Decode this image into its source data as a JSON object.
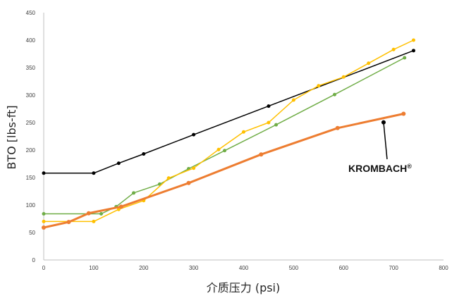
{
  "chart_data": {
    "type": "line",
    "title": "",
    "xlabel": "介质压力 (psi)",
    "ylabel": "BTO [lbs-ft]",
    "xlim": [
      0,
      800
    ],
    "ylim": [
      0,
      450
    ],
    "xticks": [
      0,
      100,
      200,
      300,
      400,
      500,
      600,
      700,
      800
    ],
    "yticks": [
      0,
      50,
      100,
      150,
      200,
      250,
      300,
      350,
      400,
      450
    ],
    "grid": false,
    "legend": "none",
    "annotation": {
      "text": "KROMBACH",
      "mark": "®",
      "series": "orange"
    },
    "series": [
      {
        "color": "#000000",
        "width": 1.5,
        "x": [
          0,
          100,
          150,
          200,
          300,
          450,
          740
        ],
        "y": [
          158,
          158,
          176,
          193,
          228,
          280,
          381
        ]
      },
      {
        "color": "#70ad47",
        "width": 1.5,
        "x": [
          0,
          115,
          145,
          180,
          232,
          290,
          362,
          465,
          582,
          722
        ],
        "y": [
          84,
          84,
          97,
          122,
          138,
          166,
          199,
          246,
          301,
          368
        ]
      },
      {
        "color": "#ffc000",
        "width": 1.5,
        "x": [
          0,
          100,
          150,
          200,
          250,
          300,
          350,
          400,
          450,
          500,
          550,
          600,
          650,
          700,
          740
        ],
        "y": [
          70,
          70,
          92,
          108,
          149,
          167,
          201,
          233,
          250,
          291,
          317,
          333,
          358,
          383,
          400
        ]
      },
      {
        "color": "#ed7d31",
        "width": 3,
        "x": [
          0,
          50,
          90,
          155,
          290,
          435,
          588,
          720
        ],
        "y": [
          59,
          69,
          85,
          97,
          140,
          192,
          240,
          266
        ]
      }
    ]
  }
}
